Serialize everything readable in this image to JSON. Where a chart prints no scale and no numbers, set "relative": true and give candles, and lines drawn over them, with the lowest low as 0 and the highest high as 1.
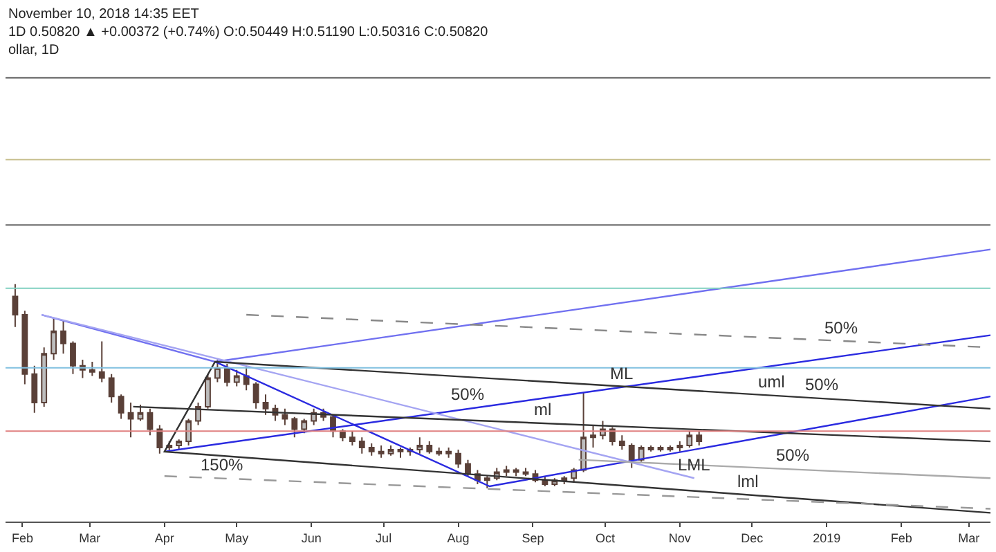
{
  "chart_data": {
    "type": "candlestick",
    "relative": true,
    "annotations": [
      "November 10, 2018 14:35 EET",
      "1D 0.50820 ▲ +0.00372 (+0.74%) O:0.50449 H:0.51190 L:0.50316 C:0.50820",
      "ollar, 1D",
      {
        "text": "50%",
        "x": "2019-01-07",
        "y": 0.72
      },
      {
        "text": "50%",
        "x": "2018-08-05",
        "y": 0.39
      },
      {
        "text": "ML",
        "x": "2018-10-08",
        "y": 0.496
      },
      {
        "text": "uml",
        "x": "2018-12-09",
        "y": 0.455
      },
      {
        "text": "50%",
        "x": "2018-12-30",
        "y": 0.44
      },
      {
        "text": "ml",
        "x": "2018-09-05",
        "y": 0.319
      },
      {
        "text": "50%",
        "x": "2018-12-18",
        "y": 0.093
      },
      {
        "text": "LML",
        "x": "2018-11-07",
        "y": 0.05
      },
      {
        "text": "lml",
        "x": "2018-11-29",
        "y": -0.032
      },
      {
        "text": "150%",
        "x": "2018-04-25",
        "y": 0.049
      }
    ],
    "xlim": [
      "2018-01-25",
      "2019-03-10"
    ],
    "xticks": [
      {
        "value": "2018-02-01",
        "label": "Feb"
      },
      {
        "value": "2018-03-01",
        "label": "Mar"
      },
      {
        "value": "2018-04-01",
        "label": "Apr"
      },
      {
        "value": "2018-05-01",
        "label": "May"
      },
      {
        "value": "2018-06-01",
        "label": "Jun"
      },
      {
        "value": "2018-07-01",
        "label": "Jul"
      },
      {
        "value": "2018-08-01",
        "label": "Aug"
      },
      {
        "value": "2018-09-01",
        "label": "Sep"
      },
      {
        "value": "2018-10-01",
        "label": "Oct"
      },
      {
        "value": "2018-11-01",
        "label": "Nov"
      },
      {
        "value": "2018-12-01",
        "label": "Dec"
      },
      {
        "value": "2019-01-01",
        "label": "2019"
      },
      {
        "value": "2019-02-01",
        "label": "Feb"
      },
      {
        "value": "2019-03-01",
        "label": "Mar"
      }
    ],
    "ref_lines": [
      {
        "axis": "y",
        "value": 2.01,
        "color": "#555555"
      },
      {
        "axis": "y",
        "value": 1.61,
        "color": "#c8c090"
      },
      {
        "axis": "y",
        "value": 1.29,
        "color": "#666666"
      },
      {
        "axis": "y",
        "value": 0.98,
        "color": "#80d0c0"
      },
      {
        "axis": "y",
        "value": 0.59,
        "color": "#80c0e0"
      },
      {
        "axis": "y",
        "value": 0.28,
        "color": "#e08080"
      }
    ],
    "series": [
      {
        "color": "#5a4038",
        "x": [
          "2018-01-29",
          "2018-02-02",
          "2018-02-06",
          "2018-02-10",
          "2018-02-14",
          "2018-02-18",
          "2018-02-22",
          "2018-02-26",
          "2018-03-02",
          "2018-03-06",
          "2018-03-10",
          "2018-03-14",
          "2018-03-18",
          "2018-03-22",
          "2018-03-26",
          "2018-03-30",
          "2018-04-03",
          "2018-04-07",
          "2018-04-11",
          "2018-04-15",
          "2018-04-19",
          "2018-04-23",
          "2018-04-27",
          "2018-05-01",
          "2018-05-05",
          "2018-05-09",
          "2018-05-13",
          "2018-05-17",
          "2018-05-21",
          "2018-05-25",
          "2018-05-29",
          "2018-06-02",
          "2018-06-06",
          "2018-06-10",
          "2018-06-14",
          "2018-06-18",
          "2018-06-22",
          "2018-06-26",
          "2018-06-30",
          "2018-07-04",
          "2018-07-08",
          "2018-07-12",
          "2018-07-16",
          "2018-07-20",
          "2018-07-24",
          "2018-07-28",
          "2018-08-01",
          "2018-08-05",
          "2018-08-09",
          "2018-08-13",
          "2018-08-17",
          "2018-08-21",
          "2018-08-25",
          "2018-08-29",
          "2018-09-02",
          "2018-09-06",
          "2018-09-10",
          "2018-09-14",
          "2018-09-18",
          "2018-09-22",
          "2018-09-26",
          "2018-09-30",
          "2018-10-04",
          "2018-10-08",
          "2018-10-12",
          "2018-10-16",
          "2018-10-20",
          "2018-10-24",
          "2018-10-28",
          "2018-11-01",
          "2018-11-05",
          "2018-11-09"
        ],
        "ohlc": [
          [
            0.94,
            1,
            0.79,
            0.85
          ],
          [
            0.85,
            0.87,
            0.51,
            0.56
          ],
          [
            0.56,
            0.6,
            0.37,
            0.42
          ],
          [
            0.42,
            0.69,
            0.4,
            0.66
          ],
          [
            0.66,
            0.83,
            0.63,
            0.77
          ],
          [
            0.77,
            0.82,
            0.66,
            0.71
          ],
          [
            0.71,
            0.72,
            0.56,
            0.6
          ],
          [
            0.6,
            0.63,
            0.54,
            0.58
          ],
          [
            0.58,
            0.62,
            0.55,
            0.57
          ],
          [
            0.57,
            0.72,
            0.52,
            0.54
          ],
          [
            0.54,
            0.56,
            0.42,
            0.45
          ],
          [
            0.45,
            0.46,
            0.34,
            0.37
          ],
          [
            0.37,
            0.42,
            0.25,
            0.34
          ],
          [
            0.34,
            0.41,
            0.33,
            0.37
          ],
          [
            0.37,
            0.39,
            0.26,
            0.29
          ],
          [
            0.29,
            0.31,
            0.17,
            0.2
          ],
          [
            0.2,
            0.23,
            0.18,
            0.21
          ],
          [
            0.21,
            0.24,
            0.19,
            0.23
          ],
          [
            0.23,
            0.34,
            0.21,
            0.33
          ],
          [
            0.33,
            0.42,
            0.31,
            0.4
          ],
          [
            0.4,
            0.56,
            0.39,
            0.54
          ],
          [
            0.54,
            0.63,
            0.52,
            0.59
          ],
          [
            0.59,
            0.61,
            0.5,
            0.52
          ],
          [
            0.52,
            0.58,
            0.5,
            0.55
          ],
          [
            0.55,
            0.6,
            0.48,
            0.51
          ],
          [
            0.51,
            0.52,
            0.39,
            0.42
          ],
          [
            0.42,
            0.46,
            0.36,
            0.39
          ],
          [
            0.39,
            0.41,
            0.33,
            0.36
          ],
          [
            0.36,
            0.39,
            0.31,
            0.34
          ],
          [
            0.34,
            0.35,
            0.25,
            0.29
          ],
          [
            0.29,
            0.34,
            0.27,
            0.33
          ],
          [
            0.33,
            0.39,
            0.31,
            0.37
          ],
          [
            0.37,
            0.39,
            0.33,
            0.35
          ],
          [
            0.35,
            0.36,
            0.25,
            0.28
          ],
          [
            0.28,
            0.29,
            0.23,
            0.25
          ],
          [
            0.25,
            0.28,
            0.21,
            0.23
          ],
          [
            0.23,
            0.25,
            0.17,
            0.2
          ],
          [
            0.2,
            0.22,
            0.16,
            0.18
          ],
          [
            0.18,
            0.21,
            0.15,
            0.17
          ],
          [
            0.17,
            0.21,
            0.16,
            0.19
          ],
          [
            0.19,
            0.2,
            0.15,
            0.18
          ],
          [
            0.18,
            0.2,
            0.16,
            0.19
          ],
          [
            0.19,
            0.25,
            0.17,
            0.21
          ],
          [
            0.21,
            0.23,
            0.17,
            0.18
          ],
          [
            0.18,
            0.2,
            0.16,
            0.17
          ],
          [
            0.18,
            0.2,
            0.15,
            0.17
          ],
          [
            0.17,
            0.19,
            0.1,
            0.12
          ],
          [
            0.12,
            0.14,
            0.06,
            0.07
          ],
          [
            0.07,
            0.09,
            0.02,
            0.04
          ],
          [
            0.04,
            0.06,
            0,
            0.05
          ],
          [
            0.05,
            0.1,
            0.04,
            0.08
          ],
          [
            0.08,
            0.11,
            0.06,
            0.09
          ],
          [
            0.09,
            0.1,
            0.06,
            0.08
          ],
          [
            0.08,
            0.1,
            0.06,
            0.07
          ],
          [
            0.07,
            0.09,
            0.03,
            0.04
          ],
          [
            0.04,
            0.06,
            0.01,
            0.02
          ],
          [
            0.02,
            0.05,
            0.01,
            0.04
          ],
          [
            0.04,
            0.06,
            0.02,
            0.05
          ],
          [
            0.05,
            0.1,
            0.03,
            0.09
          ],
          [
            0.09,
            0.47,
            0.08,
            0.25
          ],
          [
            0.25,
            0.31,
            0.2,
            0.26
          ],
          [
            0.26,
            0.33,
            0.24,
            0.29
          ],
          [
            0.29,
            0.3,
            0.21,
            0.23
          ],
          [
            0.23,
            0.26,
            0.19,
            0.21
          ],
          [
            0.21,
            0.22,
            0.1,
            0.14
          ],
          [
            0.14,
            0.21,
            0.13,
            0.2
          ],
          [
            0.2,
            0.21,
            0.18,
            0.19
          ],
          [
            0.2,
            0.21,
            0.18,
            0.19
          ],
          [
            0.19,
            0.21,
            0.18,
            0.2
          ],
          [
            0.2,
            0.23,
            0.18,
            0.21
          ],
          [
            0.21,
            0.28,
            0.2,
            0.26
          ],
          [
            0.26,
            0.28,
            0.21,
            0.23
          ]
        ]
      },
      {
        "type": "line",
        "color": "#2a2ae0",
        "x": [
          "2018-04-01",
          "2019-03-10"
        ],
        "values": [
          0.18,
          0.75
        ]
      },
      {
        "type": "line",
        "color": "#7070f0",
        "x": [
          "2018-02-09",
          "2018-04-22",
          "2019-03-10"
        ],
        "values": [
          0.85,
          0.62,
          1.17
        ]
      },
      {
        "type": "line",
        "color": "#2a2ae0",
        "x": [
          "2018-04-22",
          "2018-08-14",
          "2019-03-10"
        ],
        "values": [
          0.62,
          0.01,
          0.45
        ]
      },
      {
        "type": "line",
        "color": "#a4a4f2",
        "x": [
          "2018-02-09",
          "2018-11-07"
        ],
        "values": [
          0.85,
          0.05
        ]
      },
      {
        "type": "line",
        "color": "#333333",
        "x": [
          "2018-03-19",
          "2019-03-10"
        ],
        "values": [
          0.4,
          0.23
        ]
      },
      {
        "type": "line",
        "color": "#333333",
        "x": [
          "2019-03-10",
          "2018-04-01",
          "2018-04-22",
          "2019-03-10"
        ],
        "values": [
          -0.12,
          0.18,
          0.62,
          0.39
        ]
      },
      {
        "type": "line",
        "color": "#aaaaaa",
        "x": [
          "2018-09-20",
          "2019-03-10"
        ],
        "values": [
          0.14,
          0.05
        ]
      },
      {
        "type": "line",
        "color": "#999999",
        "line_style": "dashed",
        "x": [
          "2018-04-01",
          "2019-03-10"
        ],
        "values": [
          0.06,
          -0.1
        ]
      },
      {
        "type": "line",
        "color": "#888888",
        "line_style": "dashed",
        "x": [
          "2018-05-05",
          "2019-03-10"
        ],
        "values": [
          0.85,
          0.69
        ]
      }
    ]
  }
}
